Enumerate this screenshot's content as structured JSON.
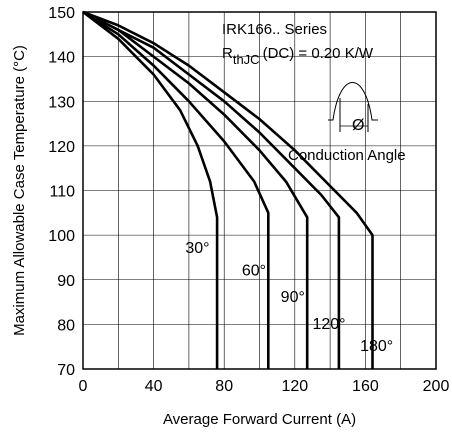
{
  "chart_data": {
    "type": "line",
    "xlabel": "Average Forward Current (A)",
    "ylabel": "Maximum Allowable Case Temperature (°C)",
    "xlim": [
      0,
      200
    ],
    "ylim": [
      70,
      150
    ],
    "x_ticks": [
      0,
      40,
      80,
      120,
      160,
      200
    ],
    "y_ticks": [
      70,
      80,
      90,
      100,
      110,
      120,
      130,
      140,
      150
    ],
    "x_tick_labels": [
      "0",
      "40",
      "80",
      "120",
      "160",
      "200"
    ],
    "y_tick_labels": [
      "70",
      "80",
      "90",
      "100",
      "110",
      "120",
      "130",
      "140",
      "150"
    ],
    "grid": true,
    "legend": "none",
    "annotations": {
      "series_name": "IRK166.. Series",
      "rth_prefix": "R",
      "rth_subscript": "thJC",
      "rth_suffix": "(DC) = 0.20 K/W",
      "inset_symbol": "Ø",
      "inset_caption": "Conduction Angle"
    },
    "series": [
      {
        "label": "30°",
        "color": "#000000",
        "points": [
          [
            0,
            150
          ],
          [
            20,
            144
          ],
          [
            40,
            136
          ],
          [
            55,
            128
          ],
          [
            65,
            120
          ],
          [
            72,
            112
          ],
          [
            76,
            104
          ],
          [
            76,
            70
          ]
        ]
      },
      {
        "label": "60°",
        "color": "#000000",
        "points": [
          [
            0,
            150
          ],
          [
            20,
            145
          ],
          [
            40,
            138
          ],
          [
            60,
            130
          ],
          [
            80,
            121
          ],
          [
            97,
            112
          ],
          [
            105,
            105
          ],
          [
            105,
            70
          ]
        ]
      },
      {
        "label": "90°",
        "color": "#000000",
        "points": [
          [
            0,
            150
          ],
          [
            20,
            146
          ],
          [
            40,
            140
          ],
          [
            60,
            134
          ],
          [
            80,
            127
          ],
          [
            100,
            119
          ],
          [
            115,
            112
          ],
          [
            127,
            104
          ],
          [
            127,
            70
          ]
        ]
      },
      {
        "label": "120°",
        "color": "#000000",
        "points": [
          [
            0,
            150
          ],
          [
            20,
            146
          ],
          [
            40,
            142
          ],
          [
            60,
            136
          ],
          [
            80,
            130
          ],
          [
            100,
            123
          ],
          [
            120,
            115
          ],
          [
            135,
            109
          ],
          [
            145,
            104
          ],
          [
            145,
            70
          ]
        ]
      },
      {
        "label": "180°",
        "color": "#000000",
        "points": [
          [
            0,
            150
          ],
          [
            20,
            147
          ],
          [
            40,
            143
          ],
          [
            60,
            138
          ],
          [
            80,
            132
          ],
          [
            100,
            126
          ],
          [
            120,
            119
          ],
          [
            140,
            111
          ],
          [
            155,
            105
          ],
          [
            164,
            100
          ],
          [
            164,
            70
          ]
        ]
      }
    ],
    "curve_label_anchor": [
      {
        "label": "30°",
        "x": 58,
        "y": 96
      },
      {
        "label": "60°",
        "x": 90,
        "y": 91
      },
      {
        "label": "90°",
        "x": 112,
        "y": 85
      },
      {
        "label": "120°",
        "x": 130,
        "y": 79
      },
      {
        "label": "180°",
        "x": 157,
        "y": 74
      }
    ]
  }
}
